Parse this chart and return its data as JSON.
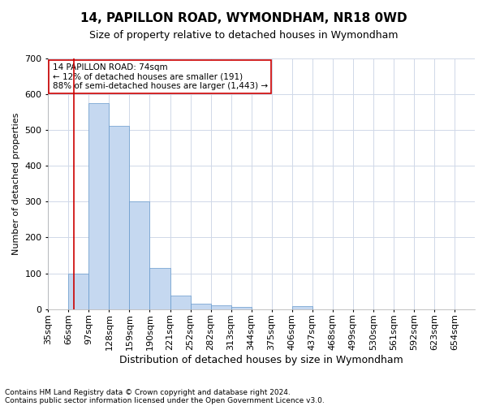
{
  "title": "14, PAPILLON ROAD, WYMONDHAM, NR18 0WD",
  "subtitle": "Size of property relative to detached houses in Wymondham",
  "xlabel": "Distribution of detached houses by size in Wymondham",
  "ylabel": "Number of detached properties",
  "footnote1": "Contains HM Land Registry data © Crown copyright and database right 2024.",
  "footnote2": "Contains public sector information licensed under the Open Government Licence v3.0.",
  "categories": [
    "35sqm",
    "66sqm",
    "97sqm",
    "128sqm",
    "159sqm",
    "190sqm",
    "221sqm",
    "252sqm",
    "282sqm",
    "313sqm",
    "344sqm",
    "375sqm",
    "406sqm",
    "437sqm",
    "468sqm",
    "499sqm",
    "530sqm",
    "561sqm",
    "592sqm",
    "623sqm",
    "654sqm"
  ],
  "values": [
    0,
    100,
    575,
    510,
    300,
    115,
    38,
    15,
    10,
    7,
    0,
    0,
    8,
    0,
    0,
    0,
    0,
    0,
    0,
    0,
    0
  ],
  "bar_color": "#c5d8f0",
  "bar_edge_color": "#6699cc",
  "ylim": [
    0,
    700
  ],
  "yticks": [
    0,
    100,
    200,
    300,
    400,
    500,
    600,
    700
  ],
  "property_size": 74,
  "red_line_color": "#cc0000",
  "annotation_text": "14 PAPILLON ROAD: 74sqm\n← 12% of detached houses are smaller (191)\n88% of semi-detached houses are larger (1,443) →",
  "annotation_box_color": "#ffffff",
  "annotation_box_edge": "#cc0000",
  "background_color": "#ffffff",
  "grid_color": "#d0d8e8",
  "title_fontsize": 11,
  "subtitle_fontsize": 9,
  "annotation_fontsize": 7.5,
  "axis_fontsize": 8,
  "ylabel_fontsize": 8,
  "xlabel_fontsize": 9,
  "footnote_fontsize": 6.5
}
